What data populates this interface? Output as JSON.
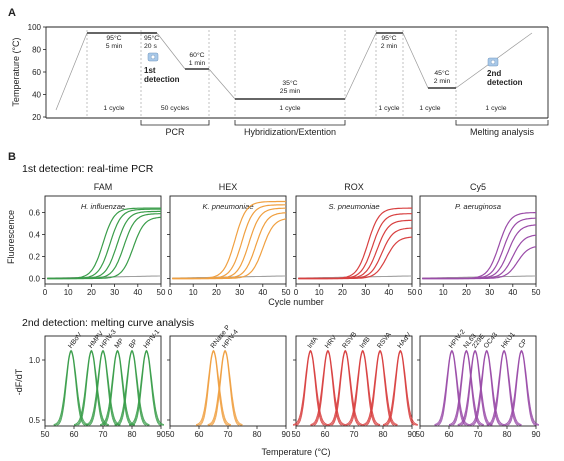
{
  "panel_a": {
    "letter": "A",
    "ylabel": "Temperature (°C)",
    "yticks": [
      "100",
      "80",
      "60",
      "40",
      "20"
    ],
    "steps": [
      {
        "temp": "95°C",
        "time": "5 min",
        "cycles": "1 cycle",
        "temp_c": 95
      },
      {
        "temp": "95°C",
        "time": "20 s",
        "cycles": "",
        "temp_c": 95
      },
      {
        "temp": "60°C",
        "time": "1 min",
        "cycles": "50 cycles",
        "temp_c": 60
      },
      {
        "temp": "35°C",
        "time": "25 min",
        "cycles": "1 cycle",
        "temp_c": 35
      },
      {
        "temp": "95°C",
        "time": "2 min",
        "cycles": "1 cycle",
        "temp_c": 95
      },
      {
        "temp": "45°C",
        "time": "2 min",
        "cycles": "1 cycle",
        "temp_c": 45
      },
      {
        "temp": "",
        "time": "",
        "cycles": "1 cycle",
        "temp_c": null
      }
    ],
    "detect1": [
      "1st",
      "detection"
    ],
    "detect2": [
      "2nd",
      "detection"
    ],
    "stages": [
      "PCR",
      "Hybridization/Extention",
      "Melting analysis"
    ]
  },
  "panel_b": {
    "letter": "B",
    "title1": "1st detection: real-time PCR",
    "title2": "2nd detection: melting curve analysis",
    "pcr_ylabel": "Fluorescence",
    "pcr_xlabel": "Cycle number",
    "melt_ylabel": "-dF/dT",
    "melt_xlabel": "Temperature (°C)",
    "pcr_yticks": [
      "0.6",
      "0.4",
      "0.2",
      "0.0"
    ],
    "pcr_xticks": [
      "0",
      "10",
      "20",
      "30",
      "40",
      "50"
    ],
    "melt_yticks": [
      "1.0",
      "0.5"
    ],
    "melt_xticks": [
      "50",
      "60",
      "70",
      "80",
      "90"
    ]
  },
  "chart_data": [
    {
      "type": "line",
      "title": "FAM",
      "annotation": "H. influenzae",
      "color": "#3a9d4a",
      "xlim": [
        0,
        50
      ],
      "ylim": [
        -0.05,
        0.75
      ],
      "series": [
        {
          "midpoint": 25,
          "plateau": 0.64
        },
        {
          "midpoint": 28,
          "plateau": 0.63
        },
        {
          "midpoint": 31,
          "plateau": 0.61
        },
        {
          "midpoint": 34,
          "plateau": 0.59
        },
        {
          "midpoint": 38,
          "plateau": 0.56
        }
      ]
    },
    {
      "type": "line",
      "title": "HEX",
      "annotation": "K. pneumoniae",
      "color": "#f0a041",
      "xlim": [
        0,
        50
      ],
      "ylim": [
        -0.05,
        0.75
      ],
      "series": [
        {
          "midpoint": 28,
          "plateau": 0.7
        },
        {
          "midpoint": 31,
          "plateau": 0.67
        },
        {
          "midpoint": 34,
          "plateau": 0.64
        },
        {
          "midpoint": 37,
          "plateau": 0.6
        },
        {
          "midpoint": 40,
          "plateau": 0.55
        }
      ]
    },
    {
      "type": "line",
      "title": "ROX",
      "annotation": "S. pneumoniae",
      "color": "#d84040",
      "xlim": [
        0,
        50
      ],
      "ylim": [
        -0.05,
        0.75
      ],
      "series": [
        {
          "midpoint": 31,
          "plateau": 0.64
        },
        {
          "midpoint": 33,
          "plateau": 0.59
        },
        {
          "midpoint": 35,
          "plateau": 0.53
        },
        {
          "midpoint": 37,
          "plateau": 0.46
        },
        {
          "midpoint": 39,
          "plateau": 0.38
        }
      ]
    },
    {
      "type": "line",
      "title": "Cy5",
      "annotation": "P. aeruginosa",
      "color": "#9a4ca8",
      "xlim": [
        0,
        50
      ],
      "ylim": [
        -0.05,
        0.75
      ],
      "series": [
        {
          "midpoint": 34,
          "plateau": 0.6
        },
        {
          "midpoint": 36,
          "plateau": 0.55
        },
        {
          "midpoint": 38,
          "plateau": 0.49
        },
        {
          "midpoint": 40,
          "plateau": 0.4
        },
        {
          "midpoint": 42,
          "plateau": 0.3
        }
      ]
    },
    {
      "type": "line",
      "color": "#3a9d4a",
      "xlim": [
        50,
        90
      ],
      "ylim": [
        0.45,
        1.2
      ],
      "peaks": [
        {
          "label": "HBoV",
          "tm": 59
        },
        {
          "label": "HMPV",
          "tm": 66
        },
        {
          "label": "HPIV-3",
          "tm": 70
        },
        {
          "label": "MP",
          "tm": 75
        },
        {
          "label": "BP",
          "tm": 80
        },
        {
          "label": "HPIV-1",
          "tm": 85
        }
      ]
    },
    {
      "type": "line",
      "color": "#f0a041",
      "xlim": [
        50,
        90
      ],
      "ylim": [
        0.45,
        1.2
      ],
      "peaks": [
        {
          "label": "RNase P",
          "tm": 65
        },
        {
          "label": "HPIV-4",
          "tm": 69
        }
      ]
    },
    {
      "type": "line",
      "color": "#d84040",
      "xlim": [
        50,
        90
      ],
      "ylim": [
        0.45,
        1.2
      ],
      "peaks": [
        {
          "label": "InfA",
          "tm": 55
        },
        {
          "label": "HRV",
          "tm": 61
        },
        {
          "label": "RSVB",
          "tm": 67
        },
        {
          "label": "InfB",
          "tm": 73
        },
        {
          "label": "RSVA",
          "tm": 79
        },
        {
          "label": "HAdV",
          "tm": 86
        }
      ]
    },
    {
      "type": "line",
      "color": "#9a4ca8",
      "xlim": [
        50,
        90
      ],
      "ylim": [
        0.45,
        1.2
      ],
      "peaks": [
        {
          "label": "HPIV-2",
          "tm": 61
        },
        {
          "label": "NL63",
          "tm": 66
        },
        {
          "label": "229E",
          "tm": 69
        },
        {
          "label": "OC43",
          "tm": 73
        },
        {
          "label": "HKU1",
          "tm": 79
        },
        {
          "label": "CP",
          "tm": 85
        }
      ]
    }
  ]
}
